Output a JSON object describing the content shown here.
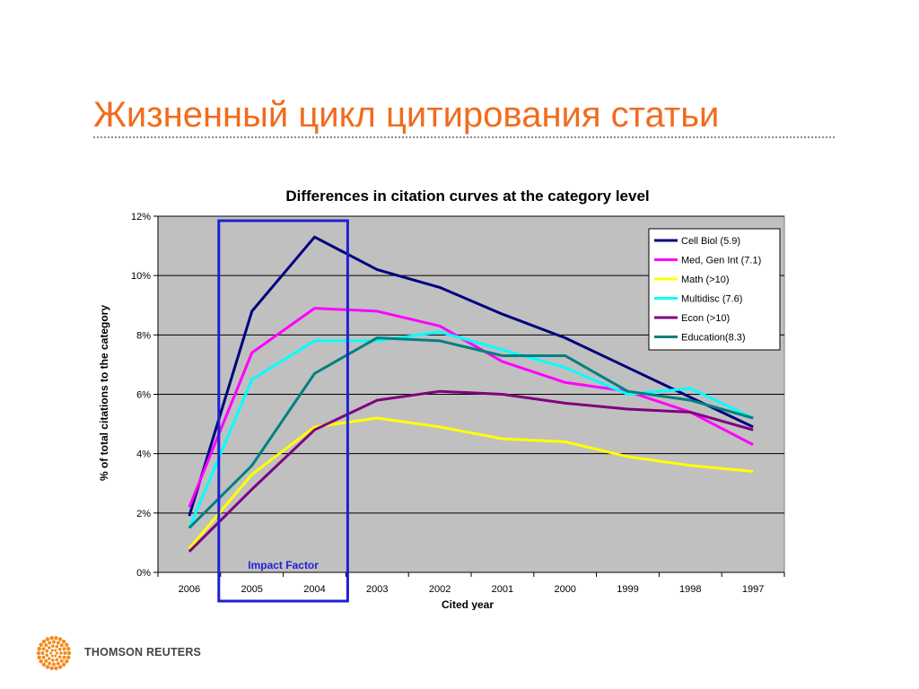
{
  "slide": {
    "title": "Жизненный цикл цитирования статьи"
  },
  "colors": {
    "title": "#f26b1d",
    "plot_background": "#c0c0c0",
    "highlight_box": "#1f1fd6",
    "logo": "#f28a1c"
  },
  "logo": {
    "text": "THOMSON REUTERS",
    "icon": "thomson-reuters-logo-icon"
  },
  "chart_data": {
    "type": "line",
    "title": "Differences in citation curves at the category level",
    "xlabel": "Cited year",
    "ylabel": "% of total citations to the category",
    "categories": [
      "2006",
      "2005",
      "2004",
      "2003",
      "2002",
      "2001",
      "2000",
      "1999",
      "1998",
      "1997"
    ],
    "y_ticks": [
      "0%",
      "2%",
      "4%",
      "6%",
      "8%",
      "10%",
      "12%"
    ],
    "ylim": [
      0,
      12
    ],
    "grid": true,
    "legend_position": "top-right",
    "series": [
      {
        "name": "Cell Biol (5.9)",
        "color": "#000080",
        "values": [
          1.9,
          8.8,
          11.3,
          10.2,
          9.6,
          8.7,
          7.9,
          6.9,
          5.9,
          4.9
        ]
      },
      {
        "name": "Med, Gen Int (7.1)",
        "color": "#ff00ff",
        "values": [
          2.2,
          7.4,
          8.9,
          8.8,
          8.3,
          7.1,
          6.4,
          6.1,
          5.4,
          4.3
        ]
      },
      {
        "name": "Math (>10)",
        "color": "#ffff00",
        "values": [
          0.8,
          3.3,
          4.9,
          5.2,
          4.9,
          4.5,
          4.4,
          3.9,
          3.6,
          3.4
        ]
      },
      {
        "name": "Multidisc (7.6)",
        "color": "#00ffff",
        "values": [
          1.5,
          6.5,
          7.8,
          7.8,
          8.1,
          7.5,
          6.9,
          6.0,
          6.2,
          5.2
        ]
      },
      {
        "name": "Econ (>10)",
        "color": "#800080",
        "values": [
          0.7,
          2.8,
          4.8,
          5.8,
          6.1,
          6.0,
          5.7,
          5.5,
          5.4,
          4.8
        ]
      },
      {
        "name": "Education(8.3)",
        "color": "#008080",
        "values": [
          1.5,
          3.6,
          6.7,
          7.9,
          7.8,
          7.3,
          7.3,
          6.1,
          5.8,
          5.2
        ]
      }
    ],
    "annotation": {
      "text": "Impact Factor",
      "categories": [
        "2005",
        "2004"
      ]
    }
  }
}
